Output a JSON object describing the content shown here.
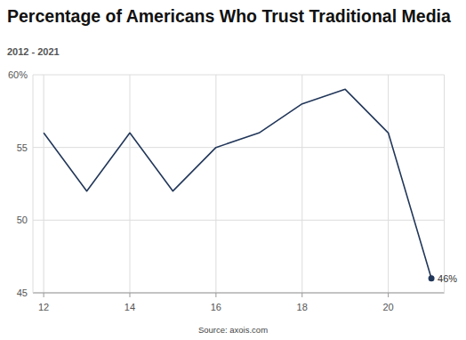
{
  "chart_data": {
    "type": "line",
    "title": "Percentage of Americans Who Trust Traditional Media",
    "subtitle": "2012 - 2021",
    "source": "Source: axois.com",
    "x": [
      12,
      13,
      14,
      15,
      16,
      17,
      18,
      19,
      20,
      21
    ],
    "values": [
      56,
      52,
      56,
      52,
      55,
      56,
      58,
      59,
      56,
      46
    ],
    "value_labels": [
      null,
      null,
      null,
      null,
      null,
      null,
      null,
      null,
      null,
      "46%"
    ],
    "color": "#22375a",
    "xlim": [
      11.75,
      21.3
    ],
    "xticks": [
      12,
      14,
      16,
      18,
      20
    ],
    "ylim": [
      45,
      60
    ],
    "yticks": [
      45,
      50,
      55,
      {
        "value": 60,
        "label": "60%"
      }
    ],
    "grid": true
  }
}
